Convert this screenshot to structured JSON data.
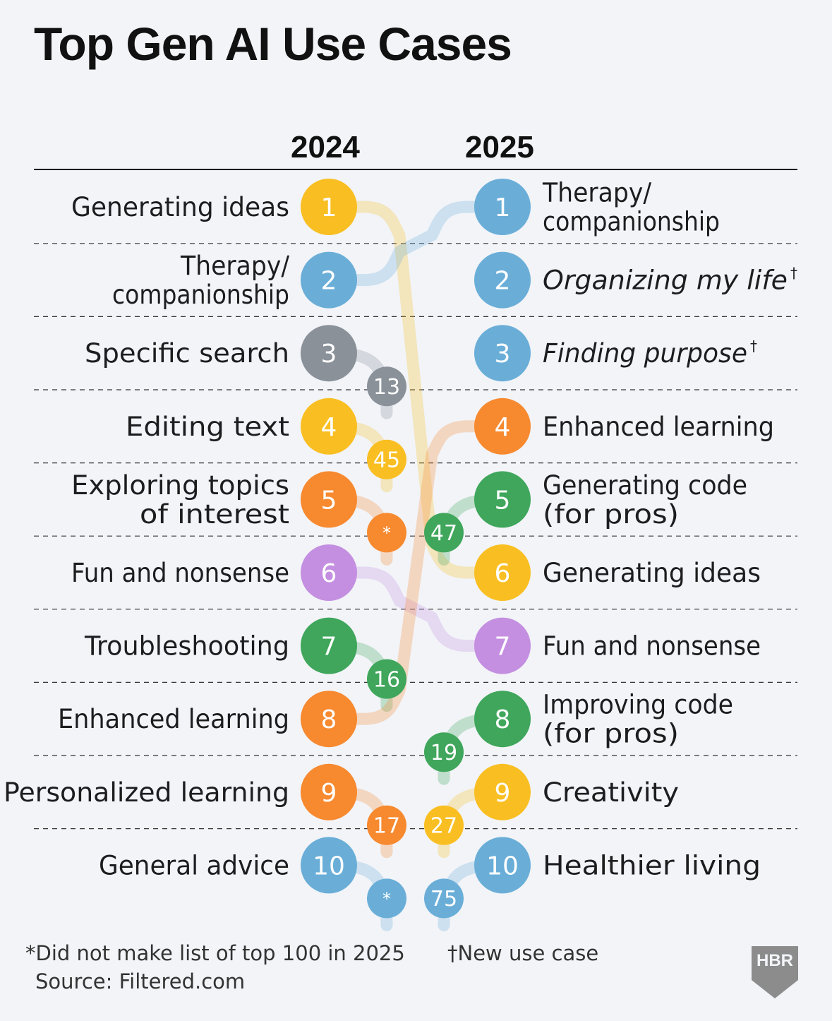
{
  "header": {
    "title": "Top Gen AI Use Cases",
    "year_left": "2024",
    "year_right": "2025"
  },
  "chart_data": {
    "type": "slope-ranking",
    "title": "Top Gen AI Use Cases",
    "columns": [
      "2024",
      "2025"
    ],
    "left": [
      {
        "rank": "1",
        "label_lines": [
          "Generating ideas"
        ],
        "color": "#f9bf22",
        "new_rank": "6"
      },
      {
        "rank": "2",
        "label_lines": [
          "Therapy/",
          "companionship"
        ],
        "color": "#6aaed8",
        "new_rank": "1"
      },
      {
        "rank": "3",
        "label_lines": [
          "Specific search"
        ],
        "color": "#8a9199",
        "new_rank": "13"
      },
      {
        "rank": "4",
        "label_lines": [
          "Editing text"
        ],
        "color": "#f9bf22",
        "new_rank": "45"
      },
      {
        "rank": "5",
        "label_lines": [
          "Exploring topics",
          "of interest"
        ],
        "color": "#f7892f",
        "new_rank": "*"
      },
      {
        "rank": "6",
        "label_lines": [
          "Fun and nonsense"
        ],
        "color": "#c48fe0",
        "new_rank": "7"
      },
      {
        "rank": "7",
        "label_lines": [
          "Troubleshooting"
        ],
        "color": "#3fa65b",
        "new_rank": "16"
      },
      {
        "rank": "8",
        "label_lines": [
          "Enhanced learning"
        ],
        "color": "#f7892f",
        "new_rank": "4"
      },
      {
        "rank": "9",
        "label_lines": [
          "Personalized learning"
        ],
        "color": "#f7892f",
        "new_rank": "17"
      },
      {
        "rank": "10",
        "label_lines": [
          "General advice"
        ],
        "color": "#6aaed8",
        "new_rank": "*"
      }
    ],
    "right": [
      {
        "rank": "1",
        "label_lines": [
          "Therapy/",
          "companionship"
        ],
        "color": "#6aaed8",
        "italic": false,
        "new": false,
        "old_rank": "2"
      },
      {
        "rank": "2",
        "label_lines": [
          "Organizing my life"
        ],
        "color": "#6aaed8",
        "italic": true,
        "new": true,
        "old_rank": ""
      },
      {
        "rank": "3",
        "label_lines": [
          "Finding purpose"
        ],
        "color": "#6aaed8",
        "italic": true,
        "new": true,
        "old_rank": ""
      },
      {
        "rank": "4",
        "label_lines": [
          "Enhanced learning"
        ],
        "color": "#f7892f",
        "italic": false,
        "new": false,
        "old_rank": "8"
      },
      {
        "rank": "5",
        "label_lines": [
          "Generating code",
          "(for pros)"
        ],
        "color": "#3fa65b",
        "italic": false,
        "new": false,
        "old_rank": "47"
      },
      {
        "rank": "6",
        "label_lines": [
          "Generating ideas"
        ],
        "color": "#f9bf22",
        "italic": false,
        "new": false,
        "old_rank": "1"
      },
      {
        "rank": "7",
        "label_lines": [
          "Fun and nonsense"
        ],
        "color": "#c48fe0",
        "italic": false,
        "new": false,
        "old_rank": "6"
      },
      {
        "rank": "8",
        "label_lines": [
          "Improving code",
          "(for pros)"
        ],
        "color": "#3fa65b",
        "italic": false,
        "new": false,
        "old_rank": "19"
      },
      {
        "rank": "9",
        "label_lines": [
          "Creativity"
        ],
        "color": "#f9bf22",
        "italic": false,
        "new": false,
        "old_rank": "27"
      },
      {
        "rank": "10",
        "label_lines": [
          "Healthier living"
        ],
        "color": "#6aaed8",
        "italic": false,
        "new": false,
        "old_rank": "75"
      }
    ]
  },
  "footer": {
    "note_not_listed": "*Did not make list of top 100 in 2025",
    "note_new": "†New use case",
    "source": "Source: Filtered.com",
    "new_marker": "†",
    "logo_text": "HBR"
  }
}
